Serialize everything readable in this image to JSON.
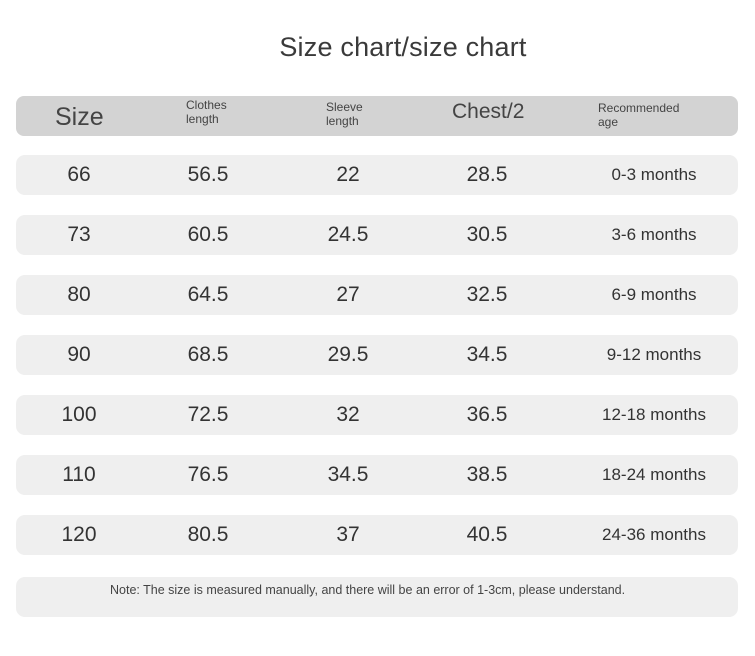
{
  "title": "Size chart/size chart",
  "headers": {
    "size": "Size",
    "clothes_line1": "Clothes",
    "clothes_line2": "length",
    "sleeve_line1": "Sleeve",
    "sleeve_line2": "length",
    "chest": "Chest/2",
    "age_line1": "Recommended",
    "age_line2": "age"
  },
  "rows": [
    {
      "size": "66",
      "clothes": "56.5",
      "sleeve": "22",
      "chest": "28.5",
      "age": "0-3 months"
    },
    {
      "size": "73",
      "clothes": "60.5",
      "sleeve": "24.5",
      "chest": "30.5",
      "age": "3-6 months"
    },
    {
      "size": "80",
      "clothes": "64.5",
      "sleeve": "27",
      "chest": "32.5",
      "age": "6-9 months"
    },
    {
      "size": "90",
      "clothes": "68.5",
      "sleeve": "29.5",
      "chest": "34.5",
      "age": "9-12 months"
    },
    {
      "size": "100",
      "clothes": "72.5",
      "sleeve": "32",
      "chest": "36.5",
      "age": "12-18 months"
    },
    {
      "size": "110",
      "clothes": "76.5",
      "sleeve": "34.5",
      "chest": "38.5",
      "age": "18-24 months"
    },
    {
      "size": "120",
      "clothes": "80.5",
      "sleeve": "37",
      "chest": "40.5",
      "age": "24-36 months"
    }
  ],
  "note": "Note: The size is measured manually, and there will be an error of 1-3cm, please understand.",
  "colors": {
    "header_band": "#d3d3d3",
    "row_band": "#efefef",
    "text": "#333333"
  }
}
